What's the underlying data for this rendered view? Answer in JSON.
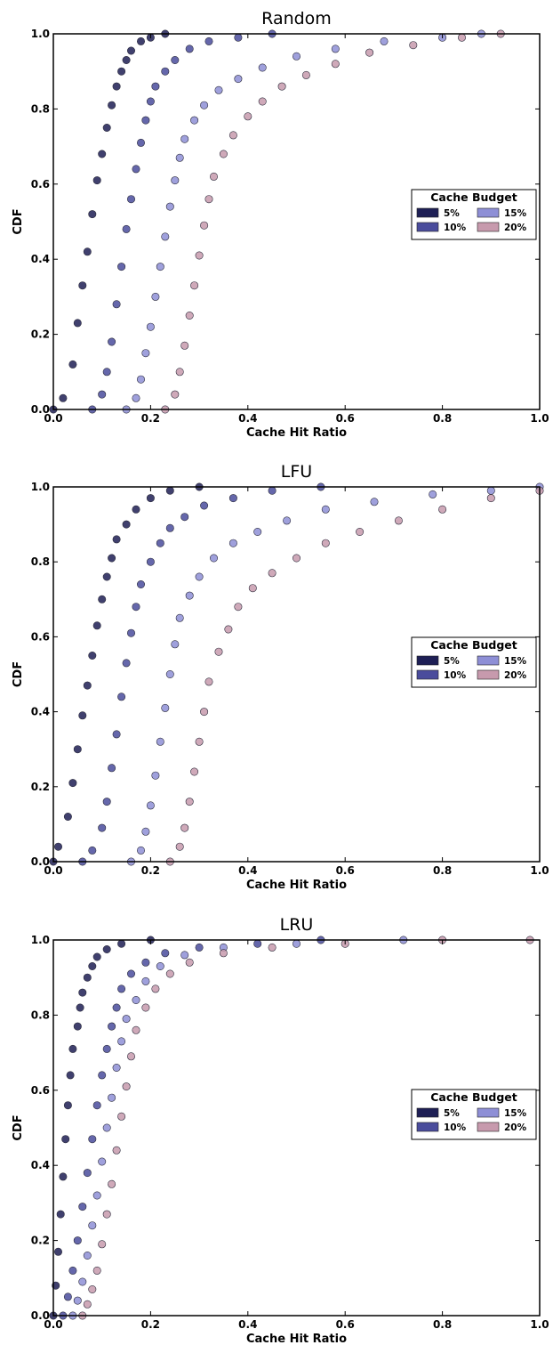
{
  "chart_data": [
    {
      "type": "scatter",
      "title": "Random",
      "xlabel": "Cache Hit Ratio",
      "ylabel": "CDF",
      "xlim": [
        0.0,
        1.0
      ],
      "ylim": [
        0.0,
        1.0
      ],
      "xticks": [
        "0.0",
        "0.2",
        "0.4",
        "0.6",
        "0.8",
        "1.0"
      ],
      "yticks": [
        "0.0",
        "0.2",
        "0.4",
        "0.6",
        "0.8",
        "1.0"
      ],
      "legend": {
        "title": "Cache Budget",
        "placement": "center-right"
      },
      "series": [
        {
          "name": "5%",
          "color": "#1e1f55",
          "points": [
            [
              0.0,
              0.0
            ],
            [
              0.02,
              0.03
            ],
            [
              0.04,
              0.12
            ],
            [
              0.05,
              0.23
            ],
            [
              0.06,
              0.33
            ],
            [
              0.07,
              0.42
            ],
            [
              0.08,
              0.52
            ],
            [
              0.09,
              0.61
            ],
            [
              0.1,
              0.68
            ],
            [
              0.11,
              0.75
            ],
            [
              0.12,
              0.81
            ],
            [
              0.13,
              0.86
            ],
            [
              0.14,
              0.9
            ],
            [
              0.15,
              0.93
            ],
            [
              0.16,
              0.955
            ],
            [
              0.18,
              0.98
            ],
            [
              0.2,
              0.99
            ],
            [
              0.23,
              1.0
            ]
          ]
        },
        {
          "name": "10%",
          "color": "#4a4c9c",
          "points": [
            [
              0.08,
              0.0
            ],
            [
              0.1,
              0.04
            ],
            [
              0.11,
              0.1
            ],
            [
              0.12,
              0.18
            ],
            [
              0.13,
              0.28
            ],
            [
              0.14,
              0.38
            ],
            [
              0.15,
              0.48
            ],
            [
              0.16,
              0.56
            ],
            [
              0.17,
              0.64
            ],
            [
              0.18,
              0.71
            ],
            [
              0.19,
              0.77
            ],
            [
              0.2,
              0.82
            ],
            [
              0.21,
              0.86
            ],
            [
              0.23,
              0.9
            ],
            [
              0.25,
              0.93
            ],
            [
              0.28,
              0.96
            ],
            [
              0.32,
              0.98
            ],
            [
              0.38,
              0.99
            ],
            [
              0.45,
              1.0
            ]
          ]
        },
        {
          "name": "15%",
          "color": "#8e8fd6",
          "points": [
            [
              0.15,
              0.0
            ],
            [
              0.17,
              0.03
            ],
            [
              0.18,
              0.08
            ],
            [
              0.19,
              0.15
            ],
            [
              0.2,
              0.22
            ],
            [
              0.21,
              0.3
            ],
            [
              0.22,
              0.38
            ],
            [
              0.23,
              0.46
            ],
            [
              0.24,
              0.54
            ],
            [
              0.25,
              0.61
            ],
            [
              0.26,
              0.67
            ],
            [
              0.27,
              0.72
            ],
            [
              0.29,
              0.77
            ],
            [
              0.31,
              0.81
            ],
            [
              0.34,
              0.85
            ],
            [
              0.38,
              0.88
            ],
            [
              0.43,
              0.91
            ],
            [
              0.5,
              0.94
            ],
            [
              0.58,
              0.96
            ],
            [
              0.68,
              0.98
            ],
            [
              0.8,
              0.99
            ],
            [
              0.88,
              1.0
            ]
          ]
        },
        {
          "name": "20%",
          "color": "#c79aad",
          "points": [
            [
              0.23,
              0.0
            ],
            [
              0.25,
              0.04
            ],
            [
              0.26,
              0.1
            ],
            [
              0.27,
              0.17
            ],
            [
              0.28,
              0.25
            ],
            [
              0.29,
              0.33
            ],
            [
              0.3,
              0.41
            ],
            [
              0.31,
              0.49
            ],
            [
              0.32,
              0.56
            ],
            [
              0.33,
              0.62
            ],
            [
              0.35,
              0.68
            ],
            [
              0.37,
              0.73
            ],
            [
              0.4,
              0.78
            ],
            [
              0.43,
              0.82
            ],
            [
              0.47,
              0.86
            ],
            [
              0.52,
              0.89
            ],
            [
              0.58,
              0.92
            ],
            [
              0.65,
              0.95
            ],
            [
              0.74,
              0.97
            ],
            [
              0.84,
              0.99
            ],
            [
              0.92,
              1.0
            ]
          ]
        }
      ]
    },
    {
      "type": "scatter",
      "title": "LFU",
      "xlabel": "Cache Hit Ratio",
      "ylabel": "CDF",
      "xlim": [
        0.0,
        1.0
      ],
      "ylim": [
        0.0,
        1.0
      ],
      "xticks": [
        "0.0",
        "0.2",
        "0.4",
        "0.6",
        "0.8",
        "1.0"
      ],
      "yticks": [
        "0.0",
        "0.2",
        "0.4",
        "0.6",
        "0.8",
        "1.0"
      ],
      "legend": {
        "title": "Cache Budget",
        "placement": "center-right"
      },
      "series": [
        {
          "name": "5%",
          "color": "#1e1f55",
          "points": [
            [
              0.0,
              0.0
            ],
            [
              0.01,
              0.04
            ],
            [
              0.03,
              0.12
            ],
            [
              0.04,
              0.21
            ],
            [
              0.05,
              0.3
            ],
            [
              0.06,
              0.39
            ],
            [
              0.07,
              0.47
            ],
            [
              0.08,
              0.55
            ],
            [
              0.09,
              0.63
            ],
            [
              0.1,
              0.7
            ],
            [
              0.11,
              0.76
            ],
            [
              0.12,
              0.81
            ],
            [
              0.13,
              0.86
            ],
            [
              0.15,
              0.9
            ],
            [
              0.17,
              0.94
            ],
            [
              0.2,
              0.97
            ],
            [
              0.24,
              0.99
            ],
            [
              0.3,
              1.0
            ]
          ]
        },
        {
          "name": "10%",
          "color": "#4a4c9c",
          "points": [
            [
              0.06,
              0.0
            ],
            [
              0.08,
              0.03
            ],
            [
              0.1,
              0.09
            ],
            [
              0.11,
              0.16
            ],
            [
              0.12,
              0.25
            ],
            [
              0.13,
              0.34
            ],
            [
              0.14,
              0.44
            ],
            [
              0.15,
              0.53
            ],
            [
              0.16,
              0.61
            ],
            [
              0.17,
              0.68
            ],
            [
              0.18,
              0.74
            ],
            [
              0.2,
              0.8
            ],
            [
              0.22,
              0.85
            ],
            [
              0.24,
              0.89
            ],
            [
              0.27,
              0.92
            ],
            [
              0.31,
              0.95
            ],
            [
              0.37,
              0.97
            ],
            [
              0.45,
              0.99
            ],
            [
              0.55,
              1.0
            ]
          ]
        },
        {
          "name": "15%",
          "color": "#8e8fd6",
          "points": [
            [
              0.16,
              0.0
            ],
            [
              0.18,
              0.03
            ],
            [
              0.19,
              0.08
            ],
            [
              0.2,
              0.15
            ],
            [
              0.21,
              0.23
            ],
            [
              0.22,
              0.32
            ],
            [
              0.23,
              0.41
            ],
            [
              0.24,
              0.5
            ],
            [
              0.25,
              0.58
            ],
            [
              0.26,
              0.65
            ],
            [
              0.28,
              0.71
            ],
            [
              0.3,
              0.76
            ],
            [
              0.33,
              0.81
            ],
            [
              0.37,
              0.85
            ],
            [
              0.42,
              0.88
            ],
            [
              0.48,
              0.91
            ],
            [
              0.56,
              0.94
            ],
            [
              0.66,
              0.96
            ],
            [
              0.78,
              0.98
            ],
            [
              0.9,
              0.99
            ],
            [
              1.0,
              1.0
            ]
          ]
        },
        {
          "name": "20%",
          "color": "#c79aad",
          "points": [
            [
              0.24,
              0.0
            ],
            [
              0.26,
              0.04
            ],
            [
              0.27,
              0.09
            ],
            [
              0.28,
              0.16
            ],
            [
              0.29,
              0.24
            ],
            [
              0.3,
              0.32
            ],
            [
              0.31,
              0.4
            ],
            [
              0.32,
              0.48
            ],
            [
              0.34,
              0.56
            ],
            [
              0.36,
              0.62
            ],
            [
              0.38,
              0.68
            ],
            [
              0.41,
              0.73
            ],
            [
              0.45,
              0.77
            ],
            [
              0.5,
              0.81
            ],
            [
              0.56,
              0.85
            ],
            [
              0.63,
              0.88
            ],
            [
              0.71,
              0.91
            ],
            [
              0.8,
              0.94
            ],
            [
              0.9,
              0.97
            ],
            [
              1.0,
              0.99
            ]
          ]
        }
      ]
    },
    {
      "type": "scatter",
      "title": "LRU",
      "xlabel": "Cache Hit Ratio",
      "ylabel": "CDF",
      "xlim": [
        0.0,
        1.0
      ],
      "ylim": [
        0.0,
        1.0
      ],
      "xticks": [
        "0.0",
        "0.2",
        "0.4",
        "0.6",
        "0.8",
        "1.0"
      ],
      "yticks": [
        "0.0",
        "0.2",
        "0.4",
        "0.6",
        "0.8",
        "1.0"
      ],
      "legend": {
        "title": "Cache Budget",
        "placement": "center-right"
      },
      "series": [
        {
          "name": "5%",
          "color": "#1e1f55",
          "points": [
            [
              0.0,
              0.0
            ],
            [
              0.005,
              0.08
            ],
            [
              0.01,
              0.17
            ],
            [
              0.015,
              0.27
            ],
            [
              0.02,
              0.37
            ],
            [
              0.025,
              0.47
            ],
            [
              0.03,
              0.56
            ],
            [
              0.035,
              0.64
            ],
            [
              0.04,
              0.71
            ],
            [
              0.05,
              0.77
            ],
            [
              0.055,
              0.82
            ],
            [
              0.06,
              0.86
            ],
            [
              0.07,
              0.9
            ],
            [
              0.08,
              0.93
            ],
            [
              0.09,
              0.955
            ],
            [
              0.11,
              0.975
            ],
            [
              0.14,
              0.99
            ],
            [
              0.2,
              1.0
            ]
          ]
        },
        {
          "name": "10%",
          "color": "#4a4c9c",
          "points": [
            [
              0.02,
              0.0
            ],
            [
              0.03,
              0.05
            ],
            [
              0.04,
              0.12
            ],
            [
              0.05,
              0.2
            ],
            [
              0.06,
              0.29
            ],
            [
              0.07,
              0.38
            ],
            [
              0.08,
              0.47
            ],
            [
              0.09,
              0.56
            ],
            [
              0.1,
              0.64
            ],
            [
              0.11,
              0.71
            ],
            [
              0.12,
              0.77
            ],
            [
              0.13,
              0.82
            ],
            [
              0.14,
              0.87
            ],
            [
              0.16,
              0.91
            ],
            [
              0.19,
              0.94
            ],
            [
              0.23,
              0.965
            ],
            [
              0.3,
              0.98
            ],
            [
              0.42,
              0.99
            ],
            [
              0.55,
              1.0
            ]
          ]
        },
        {
          "name": "15%",
          "color": "#8e8fd6",
          "points": [
            [
              0.04,
              0.0
            ],
            [
              0.05,
              0.04
            ],
            [
              0.06,
              0.09
            ],
            [
              0.07,
              0.16
            ],
            [
              0.08,
              0.24
            ],
            [
              0.09,
              0.32
            ],
            [
              0.1,
              0.41
            ],
            [
              0.11,
              0.5
            ],
            [
              0.12,
              0.58
            ],
            [
              0.13,
              0.66
            ],
            [
              0.14,
              0.73
            ],
            [
              0.15,
              0.79
            ],
            [
              0.17,
              0.84
            ],
            [
              0.19,
              0.89
            ],
            [
              0.22,
              0.93
            ],
            [
              0.27,
              0.96
            ],
            [
              0.35,
              0.98
            ],
            [
              0.5,
              0.99
            ],
            [
              0.72,
              1.0
            ]
          ]
        },
        {
          "name": "20%",
          "color": "#c79aad",
          "points": [
            [
              0.06,
              0.0
            ],
            [
              0.07,
              0.03
            ],
            [
              0.08,
              0.07
            ],
            [
              0.09,
              0.12
            ],
            [
              0.1,
              0.19
            ],
            [
              0.11,
              0.27
            ],
            [
              0.12,
              0.35
            ],
            [
              0.13,
              0.44
            ],
            [
              0.14,
              0.53
            ],
            [
              0.15,
              0.61
            ],
            [
              0.16,
              0.69
            ],
            [
              0.17,
              0.76
            ],
            [
              0.19,
              0.82
            ],
            [
              0.21,
              0.87
            ],
            [
              0.24,
              0.91
            ],
            [
              0.28,
              0.94
            ],
            [
              0.35,
              0.965
            ],
            [
              0.45,
              0.98
            ],
            [
              0.6,
              0.99
            ],
            [
              0.8,
              1.0
            ],
            [
              0.98,
              1.0
            ]
          ]
        }
      ]
    }
  ]
}
